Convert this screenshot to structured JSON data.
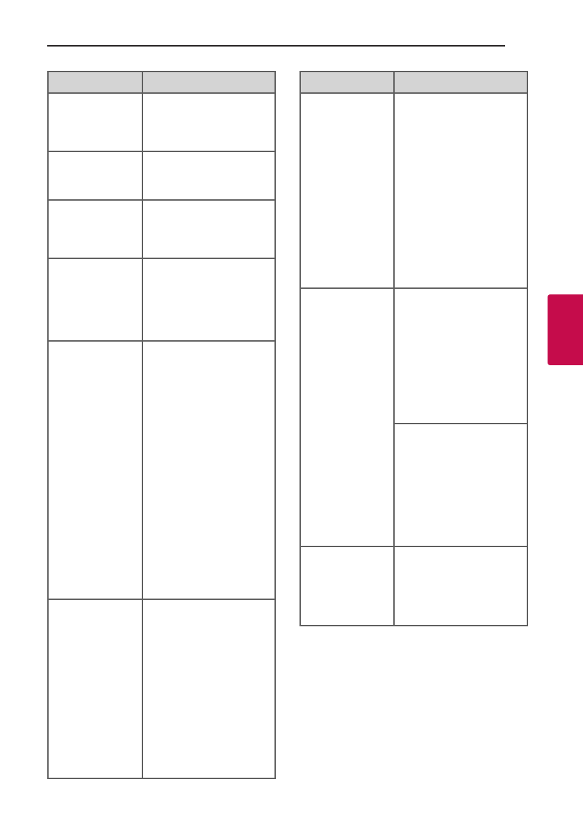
{
  "colors": {
    "accent_tab": "#c50c4b",
    "header_fill": "#d4d4d4",
    "border": "#5e5e5e"
  },
  "tables": [
    {
      "columns": [
        "",
        ""
      ],
      "rows": 6
    },
    {
      "columns": [
        "",
        ""
      ],
      "rows": 3
    }
  ]
}
